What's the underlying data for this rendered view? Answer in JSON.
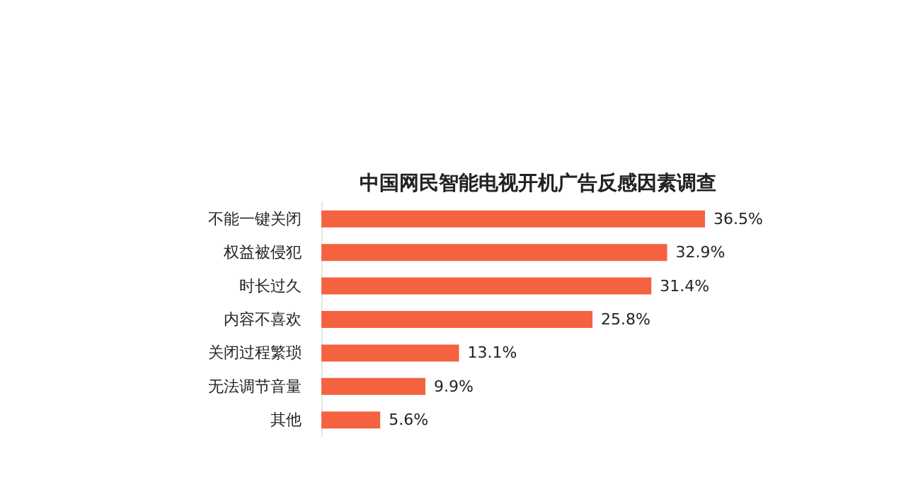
{
  "chart_data": {
    "type": "bar",
    "orientation": "horizontal",
    "title": "中国网民智能电视开机广告反感因素调查",
    "categories": [
      "不能一键关闭",
      "权益被侵犯",
      "时长过久",
      "内容不喜欢",
      "关闭过程繁琐",
      "无法调节音量",
      "其他"
    ],
    "values": [
      36.5,
      32.9,
      31.4,
      25.8,
      13.1,
      9.9,
      5.6
    ],
    "value_labels": [
      "36.5%",
      "32.9%",
      "31.4%",
      "25.8%",
      "13.1%",
      "9.9%",
      "5.6%"
    ],
    "color": "#f4623f"
  }
}
